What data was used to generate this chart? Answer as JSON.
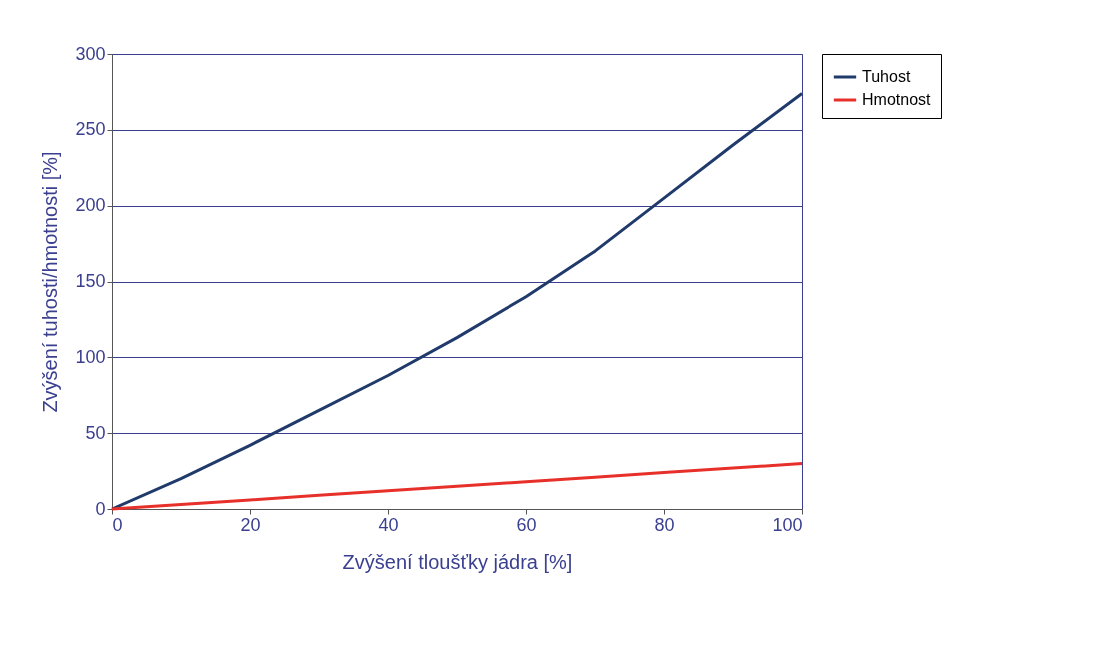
{
  "chart_data": {
    "type": "line",
    "xlabel": "Zvýšení tloušťky jádra [%]",
    "ylabel": "Zvýšení tuhosti/hmotnosti [%]",
    "x": [
      0,
      10,
      20,
      30,
      40,
      50,
      60,
      70,
      80,
      90,
      100
    ],
    "series": [
      {
        "name": "Tuhost",
        "color": "#1f3a6b",
        "values": [
          0,
          20,
          42,
          65,
          88,
          113,
          140,
          170,
          205,
          240,
          274
        ]
      },
      {
        "name": "Hmotnost",
        "color": "#e8302a",
        "values": [
          0,
          3,
          6,
          9,
          12,
          15,
          18,
          21,
          24,
          27,
          30
        ]
      }
    ],
    "xlim": [
      0,
      100
    ],
    "xticks": [
      0,
      20,
      40,
      60,
      80,
      100
    ],
    "ylim": [
      0,
      300
    ],
    "yticks": [
      0,
      50,
      100,
      150,
      200,
      250,
      300
    ],
    "grid": "y",
    "legend": "right",
    "line_style": "solid",
    "marker": "none"
  }
}
